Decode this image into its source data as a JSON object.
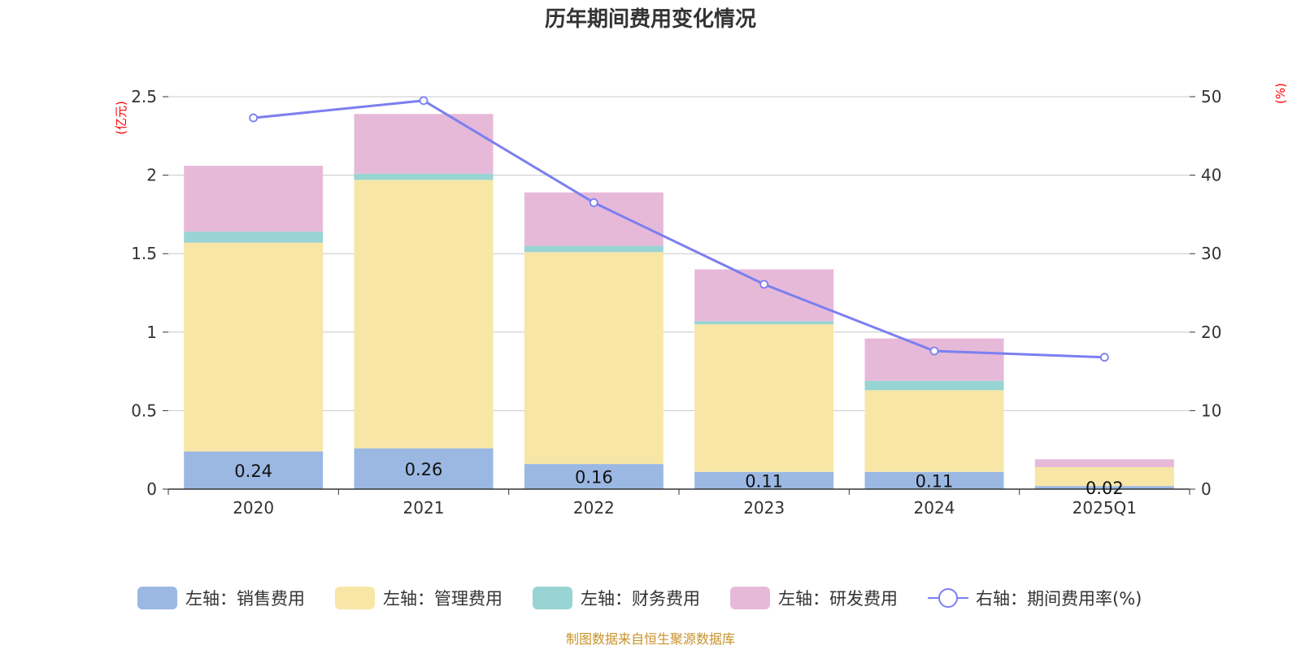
{
  "chart_data": {
    "type": "bar",
    "title": "历年期间费用变化情况",
    "categories": [
      "2020",
      "2021",
      "2022",
      "2023",
      "2024",
      "2025Q1"
    ],
    "left_axis": {
      "unit": "(亿元)",
      "ylim": [
        0,
        2.5
      ],
      "ticks": [
        "0",
        "0.5",
        "1",
        "1.5",
        "2",
        "2.5"
      ],
      "tick_values": [
        0,
        0.5,
        1,
        1.5,
        2,
        2.5
      ]
    },
    "right_axis": {
      "unit": "(%)",
      "ylim": [
        0,
        50
      ],
      "ticks": [
        "0",
        "10",
        "20",
        "30",
        "40",
        "50"
      ],
      "tick_values": [
        0,
        10,
        20,
        30,
        40,
        50
      ]
    },
    "stacked": true,
    "series": [
      {
        "name": "左轴：销售费用",
        "axis": "left",
        "color": "#9bb8e3",
        "values": [
          0.24,
          0.26,
          0.16,
          0.11,
          0.11,
          0.02
        ],
        "labels": [
          "0.24",
          "0.26",
          "0.16",
          "0.11",
          "0.11",
          "0.02"
        ]
      },
      {
        "name": "左轴：管理费用",
        "axis": "left",
        "color": "#f7e6a6",
        "values": [
          1.33,
          1.71,
          1.35,
          0.94,
          0.52,
          0.12
        ]
      },
      {
        "name": "左轴：财务费用",
        "axis": "left",
        "color": "#98d4d3",
        "values": [
          0.07,
          0.04,
          0.04,
          0.02,
          0.06,
          0.0
        ]
      },
      {
        "name": "左轴：研发费用",
        "axis": "left",
        "color": "#e7b9d9",
        "values": [
          0.42,
          0.38,
          0.34,
          0.33,
          0.27,
          0.05
        ]
      },
      {
        "name": "右轴：期间费用率(%)",
        "axis": "right",
        "type": "line",
        "color": "#7b7ff0",
        "values": [
          47.3,
          49.5,
          36.5,
          26.1,
          17.6,
          16.8
        ]
      }
    ],
    "legend_position": "bottom",
    "grid": true
  },
  "source": "制图数据来自恒生聚源数据库"
}
